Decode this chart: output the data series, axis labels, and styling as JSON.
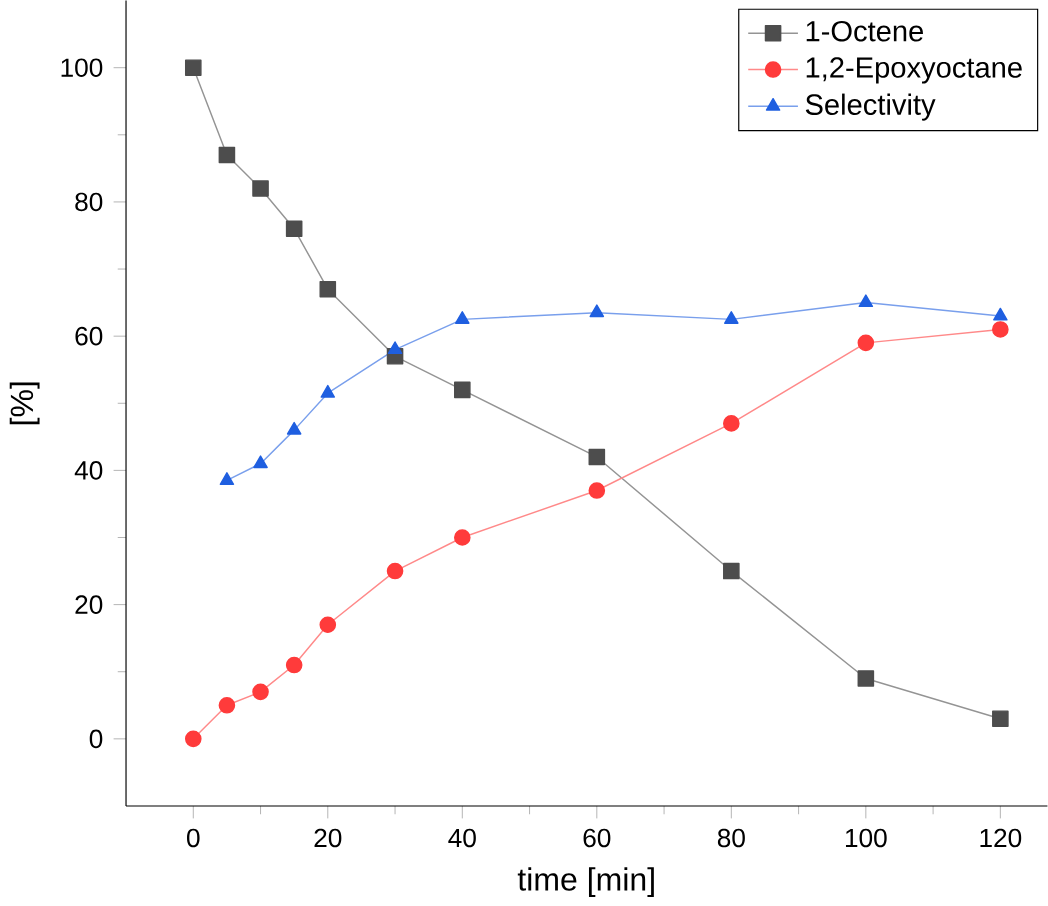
{
  "chart_data": {
    "type": "line",
    "xlabel": "time [min]",
    "ylabel": "[%]",
    "xlim": [
      -10,
      127
    ],
    "ylim": [
      -10,
      110
    ],
    "xticks": [
      0,
      20,
      40,
      60,
      80,
      100,
      120
    ],
    "yticks": [
      0,
      20,
      40,
      60,
      80,
      100
    ],
    "legend": "top right",
    "grid": false,
    "series": [
      {
        "name": "1-Octene",
        "color": "#4d4d4d",
        "marker": "square",
        "x": [
          0,
          5,
          10,
          15,
          20,
          30,
          40,
          60,
          80,
          100,
          120
        ],
        "values": [
          100,
          87,
          82,
          76,
          67,
          57,
          52,
          42,
          25,
          9,
          3
        ]
      },
      {
        "name": "1,2-Epoxyoctane",
        "color": "#ff3b3b",
        "marker": "circle",
        "x": [
          0,
          5,
          10,
          15,
          20,
          30,
          40,
          60,
          80,
          100,
          120
        ],
        "values": [
          0,
          5,
          7,
          11,
          17,
          25,
          30,
          37,
          47,
          59,
          61
        ]
      },
      {
        "name": "Selectivity",
        "color": "#1f5fe0",
        "marker": "triangle",
        "x": [
          5,
          10,
          15,
          20,
          30,
          40,
          60,
          80,
          100,
          120
        ],
        "values": [
          38.5,
          41,
          46,
          51.5,
          58,
          62.5,
          63.5,
          62.5,
          65,
          63
        ]
      }
    ]
  }
}
